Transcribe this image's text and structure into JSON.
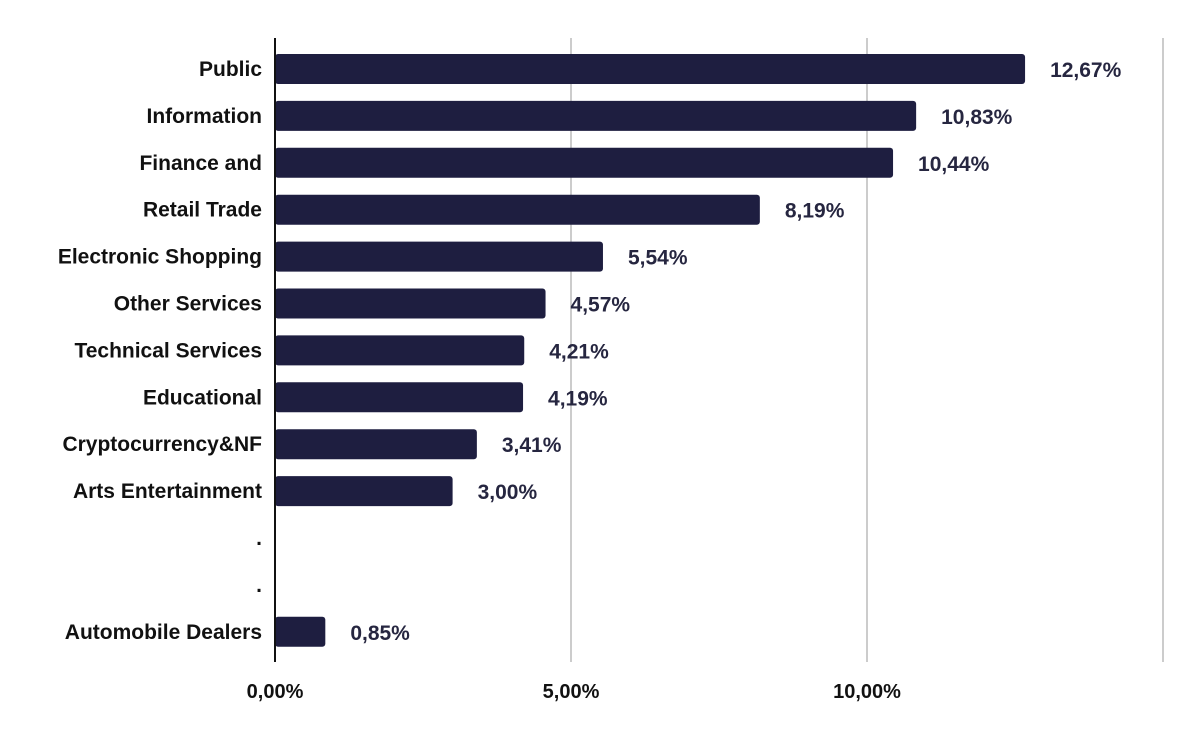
{
  "chart_data": {
    "type": "bar",
    "orientation": "horizontal",
    "title": "",
    "xlabel": "",
    "ylabel": "",
    "categories": [
      "Public",
      "Information",
      "Finance and",
      "Retail Trade",
      "Electronic Shopping",
      "Other Services",
      "Technical Services",
      "Educational",
      "Cryptocurrency&NF",
      "Arts Entertainment",
      ".",
      ".",
      "Automobile Dealers"
    ],
    "values": [
      12.67,
      10.83,
      10.44,
      8.19,
      5.54,
      4.57,
      4.21,
      4.19,
      3.41,
      3.0,
      null,
      null,
      0.85
    ],
    "value_labels": [
      "12,67%",
      "10,83%",
      "10,44%",
      "8,19%",
      "5,54%",
      "4,57%",
      "4,21%",
      "4,19%",
      "3,41%",
      "3,00%",
      "",
      "",
      "0,85%"
    ],
    "xlim": [
      0,
      15
    ],
    "x_ticks": [
      0,
      5,
      10
    ],
    "x_tick_labels": [
      "0,00%",
      "5,00%",
      "10,00%"
    ],
    "grid": true,
    "legend": "none",
    "bar_color": "#1e1e40"
  }
}
